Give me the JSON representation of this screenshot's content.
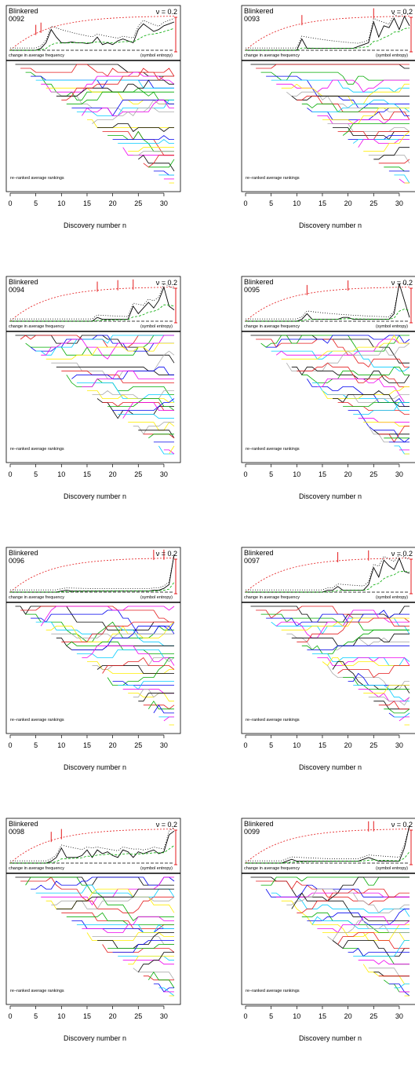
{
  "chart_data": [
    {
      "type": "line",
      "title": "Blinkered",
      "id": "0092",
      "nu_label": "ν = 0.2",
      "xlabel": "Discovery number n",
      "xticks": [
        0,
        5,
        10,
        15,
        20,
        25,
        30
      ],
      "xlim": [
        0,
        32
      ],
      "top_label": "change in average frequency",
      "entropy_label": "(symbol entropy)",
      "bottom_label": "re−ranked average rankings",
      "change_series": [
        0,
        0,
        0,
        0,
        0,
        0,
        0.05,
        0.2,
        0.55,
        0.35,
        0.2,
        0.2,
        0.22,
        0.2,
        0.2,
        0.18,
        0.2,
        0.35,
        0.15,
        0.2,
        0.15,
        0.25,
        0.3,
        0.25,
        0.2,
        0.55,
        0.7,
        0.6,
        0.5,
        0.55,
        0.65,
        0.7,
        0.75
      ],
      "entropy_markers": [
        5,
        6
      ]
    },
    {
      "type": "line",
      "title": "Blinkered",
      "id": "0093",
      "nu_label": "ν = 0.2",
      "xlabel": "Discovery number n",
      "xticks": [
        0,
        5,
        10,
        15,
        20,
        25,
        30
      ],
      "xlim": [
        0,
        32
      ],
      "top_label": "change in average frequency",
      "entropy_label": "(symbol entropy)",
      "bottom_label": "re−ranked average rankings",
      "change_series": [
        0,
        0,
        0,
        0,
        0,
        0,
        0,
        0,
        0,
        0,
        0,
        0.3,
        0.05,
        0.05,
        0.05,
        0.05,
        0.05,
        0.05,
        0.05,
        0.05,
        0.05,
        0.05,
        0.1,
        0.15,
        0.2,
        0.75,
        0.35,
        0.65,
        0.6,
        0.85,
        0.55,
        0.9,
        0.65
      ],
      "entropy_markers": [
        11,
        25
      ]
    },
    {
      "type": "line",
      "title": "Blinkered",
      "id": "0094",
      "nu_label": "ν = 0.2",
      "xlabel": "Discovery number n",
      "xticks": [
        0,
        5,
        10,
        15,
        20,
        25,
        30
      ],
      "xlim": [
        0,
        32
      ],
      "top_label": "change in average frequency",
      "entropy_label": "(symbol entropy)",
      "bottom_label": "re−ranked average rankings",
      "change_series": [
        0,
        0,
        0,
        0,
        0,
        0,
        0,
        0,
        0,
        0,
        0,
        0,
        0,
        0,
        0,
        0,
        0,
        0.1,
        0.05,
        0.05,
        0.05,
        0.05,
        0.05,
        0.05,
        0.4,
        0.2,
        0.35,
        0.5,
        0.35,
        0.55,
        0.9,
        0.4,
        0.3
      ],
      "entropy_markers": [
        17,
        21,
        24
      ]
    },
    {
      "type": "line",
      "title": "Blinkered",
      "id": "0095",
      "nu_label": "ν = 0.2",
      "xlabel": "Discovery number n",
      "xticks": [
        0,
        5,
        10,
        15,
        20,
        25,
        30
      ],
      "xlim": [
        0,
        32
      ],
      "top_label": "change in average frequency",
      "entropy_label": "(symbol entropy)",
      "bottom_label": "re−ranked average rankings",
      "change_series": [
        0,
        0,
        0,
        0,
        0,
        0,
        0,
        0,
        0,
        0,
        0,
        0.05,
        0.2,
        0.05,
        0.05,
        0.05,
        0.05,
        0.05,
        0.05,
        0.1,
        0.1,
        0.05,
        0.05,
        0.05,
        0.05,
        0.05,
        0.05,
        0.05,
        0.05,
        0.2,
        1.0,
        0.55,
        0.1
      ],
      "entropy_markers": [
        12,
        20
      ]
    },
    {
      "type": "line",
      "title": "Blinkered",
      "id": "0096",
      "nu_label": "ν = 0.2",
      "xlabel": "Discovery number n",
      "xticks": [
        0,
        5,
        10,
        15,
        20,
        25,
        30
      ],
      "xlim": [
        0,
        32
      ],
      "top_label": "change in average frequency",
      "entropy_label": "(symbol entropy)",
      "bottom_label": "re−ranked average rankings",
      "change_series": [
        0,
        0,
        0,
        0,
        0,
        0,
        0,
        0,
        0,
        0,
        0.03,
        0.05,
        0.03,
        0.03,
        0.03,
        0.03,
        0.03,
        0.03,
        0.03,
        0.03,
        0.03,
        0.03,
        0.03,
        0.03,
        0.03,
        0.03,
        0.03,
        0.03,
        0.05,
        0.05,
        0.1,
        0.2,
        1.0
      ],
      "entropy_markers": [
        28,
        30
      ]
    },
    {
      "type": "line",
      "title": "Blinkered",
      "id": "0097",
      "nu_label": "ν = 0.2",
      "xlabel": "Discovery number n",
      "xticks": [
        0,
        5,
        10,
        15,
        20,
        25,
        30
      ],
      "xlim": [
        0,
        32
      ],
      "top_label": "change in average frequency",
      "entropy_label": "(symbol entropy)",
      "bottom_label": "re−ranked average rankings",
      "change_series": [
        0,
        0,
        0,
        0,
        0,
        0,
        0,
        0,
        0,
        0,
        0,
        0,
        0,
        0,
        0,
        0,
        0.05,
        0.05,
        0.15,
        0.05,
        0.05,
        0.05,
        0.05,
        0.05,
        0.2,
        0.65,
        0.4,
        0.85,
        0.7,
        0.6,
        0.9,
        0.55,
        0.5
      ],
      "entropy_markers": [
        18,
        24
      ]
    },
    {
      "type": "line",
      "title": "Blinkered",
      "id": "0098",
      "nu_label": "ν = 0.2",
      "xlabel": "Discovery number n",
      "xticks": [
        0,
        5,
        10,
        15,
        20,
        25,
        30
      ],
      "xlim": [
        0,
        32
      ],
      "top_label": "change in average frequency",
      "entropy_label": "(symbol entropy)",
      "bottom_label": "re−ranked average rankings",
      "change_series": [
        0,
        0,
        0,
        0,
        0,
        0,
        0,
        0,
        0.05,
        0.15,
        0.4,
        0.15,
        0.15,
        0.15,
        0.2,
        0.35,
        0.15,
        0.35,
        0.25,
        0.3,
        0.2,
        0.15,
        0.35,
        0.3,
        0.15,
        0.3,
        0.25,
        0.3,
        0.35,
        0.25,
        0.3,
        0.75,
        0.85
      ],
      "entropy_markers": [
        8,
        10
      ]
    },
    {
      "type": "line",
      "title": "Blinkered",
      "id": "0099",
      "nu_label": "ν = 0.2",
      "xlabel": "Discovery number n",
      "xticks": [
        0,
        5,
        10,
        15,
        20,
        25,
        30
      ],
      "xlim": [
        0,
        32
      ],
      "top_label": "change in average frequency",
      "entropy_label": "(symbol entropy)",
      "bottom_label": "re−ranked average rankings",
      "change_series": [
        0,
        0,
        0,
        0,
        0,
        0,
        0,
        0,
        0.05,
        0.1,
        0.05,
        0.05,
        0.05,
        0.05,
        0.05,
        0.05,
        0.05,
        0.05,
        0.05,
        0.05,
        0.05,
        0.05,
        0.05,
        0.1,
        0.15,
        0.1,
        0.05,
        0.05,
        0.05,
        0.05,
        0.05,
        0.4,
        1.0
      ],
      "entropy_markers": [
        24,
        25
      ]
    }
  ],
  "colors": {
    "entropy": "#e41a1c",
    "ranking_palette": [
      "#000000",
      "#e41a1c",
      "#00aa00",
      "#0000ee",
      "#00ccff",
      "#ee00ee",
      "#ffee00",
      "#aaaaaa"
    ],
    "frame": "#000000",
    "dotted": "#000000",
    "green_dashed": "#00aa00"
  }
}
